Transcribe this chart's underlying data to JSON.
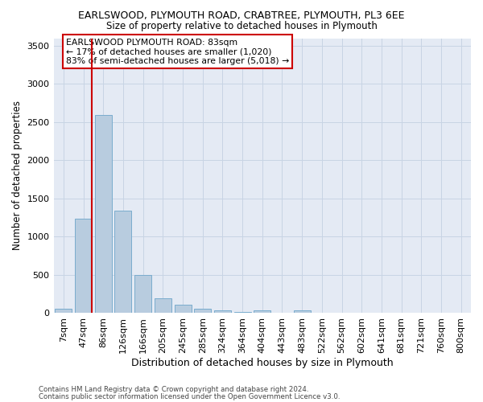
{
  "title_line1": "EARLSWOOD, PLYMOUTH ROAD, CRABTREE, PLYMOUTH, PL3 6EE",
  "title_line2": "Size of property relative to detached houses in Plymouth",
  "xlabel": "Distribution of detached houses by size in Plymouth",
  "ylabel": "Number of detached properties",
  "bar_labels": [
    "7sqm",
    "47sqm",
    "86sqm",
    "126sqm",
    "166sqm",
    "205sqm",
    "245sqm",
    "285sqm",
    "324sqm",
    "364sqm",
    "404sqm",
    "443sqm",
    "483sqm",
    "522sqm",
    "562sqm",
    "602sqm",
    "641sqm",
    "681sqm",
    "721sqm",
    "760sqm",
    "800sqm"
  ],
  "bar_values": [
    50,
    1230,
    2590,
    1340,
    500,
    190,
    110,
    50,
    30,
    15,
    30,
    0,
    30,
    0,
    0,
    0,
    0,
    0,
    0,
    0,
    0
  ],
  "bar_color": "#b8ccdf",
  "bar_edge_color": "#7aacce",
  "vline_color": "#cc0000",
  "vline_x_idx": 1,
  "annotation_text": "EARLSWOOD PLYMOUTH ROAD: 83sqm\n← 17% of detached houses are smaller (1,020)\n83% of semi-detached houses are larger (5,018) →",
  "annotation_box_facecolor": "#ffffff",
  "annotation_box_edgecolor": "#cc0000",
  "ylim": [
    0,
    3600
  ],
  "yticks": [
    0,
    500,
    1000,
    1500,
    2000,
    2500,
    3000,
    3500
  ],
  "grid_color": "#c8d4e4",
  "background_color": "#e4eaf4",
  "footer_line1": "Contains HM Land Registry data © Crown copyright and database right 2024.",
  "footer_line2": "Contains public sector information licensed under the Open Government Licence v3.0."
}
